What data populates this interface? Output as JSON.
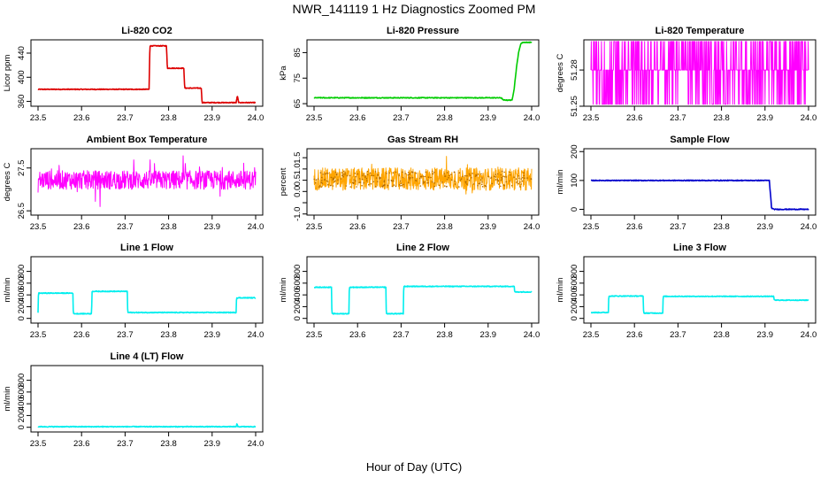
{
  "figure": {
    "title": "NWR_141119  1 Hz Diagnostics Zoomed PM",
    "xlabel": "Hour of Day (UTC)"
  },
  "chart_data": [
    {
      "type": "line",
      "title": "Li-820 CO2",
      "ylabel": "Licor ppm",
      "color": "#dd0000",
      "xlim": [
        23.5,
        24.0
      ],
      "ylim": [
        352,
        462
      ],
      "xticks": [
        23.5,
        23.6,
        23.7,
        23.8,
        23.9,
        24.0
      ],
      "yticks": [
        360,
        400,
        440
      ],
      "series": [
        {
          "x": [
            23.5,
            23.755,
            23.757,
            23.795,
            23.797,
            23.835,
            23.837,
            23.875,
            23.877,
            23.955,
            23.958,
            23.961,
            24.0
          ],
          "y": [
            380,
            380,
            452,
            452,
            415,
            415,
            382,
            382,
            358,
            358,
            369,
            358,
            358
          ]
        }
      ]
    },
    {
      "type": "line",
      "title": "Li-820 Pressure",
      "ylabel": "kPa",
      "color": "#00cc00",
      "xlim": [
        23.5,
        24.0
      ],
      "ylim": [
        64,
        90
      ],
      "xticks": [
        23.5,
        23.6,
        23.7,
        23.8,
        23.9,
        24.0
      ],
      "yticks": [
        65,
        75,
        85
      ],
      "series": [
        {
          "x": [
            23.5,
            23.93,
            23.935,
            23.955,
            23.96,
            23.965,
            23.97,
            23.975,
            23.98,
            24.0
          ],
          "y": [
            67.3,
            67.3,
            66.4,
            66.4,
            71,
            79,
            85,
            88.5,
            89,
            89
          ]
        }
      ]
    },
    {
      "type": "line",
      "title": "Li-820 Temperature",
      "ylabel": "degrees C",
      "color": "#ff00ff",
      "xlim": [
        23.5,
        24.0
      ],
      "ylim": [
        51.25,
        51.305
      ],
      "xticks": [
        23.5,
        23.6,
        23.7,
        23.8,
        23.9,
        24.0
      ],
      "yticks": [
        51.25,
        51.28
      ],
      "ytick_labels": [
        "51.25",
        "51.28"
      ],
      "series": [
        {
          "x": [
            23.5,
            24.0
          ],
          "y": [
            51.28,
            51.28
          ]
        }
      ],
      "noise": {
        "levels": [
          51.2516,
          51.3036
        ],
        "base": 51.28
      }
    },
    {
      "type": "line",
      "title": "Ambient Box Temperature",
      "ylabel": "degrees C",
      "color": "#ff00ff",
      "xlim": [
        23.5,
        24.0
      ],
      "ylim": [
        26.4,
        27.95
      ],
      "xticks": [
        23.5,
        23.6,
        23.7,
        23.8,
        23.9,
        24.0
      ],
      "yticks": [
        26.5,
        27.5
      ],
      "series": [
        {
          "x": [
            23.5,
            24.0
          ],
          "y": [
            27.22,
            27.22
          ]
        }
      ],
      "noise": {
        "amp": 0.22,
        "spike": 0.55
      }
    },
    {
      "type": "line",
      "title": "Gas Stream RH",
      "ylabel": "percent",
      "color": "#ffa500",
      "xlim": [
        23.5,
        24.0
      ],
      "ylim": [
        -1.05,
        1.9
      ],
      "xticks": [
        23.5,
        23.6,
        23.7,
        23.8,
        23.9,
        24.0
      ],
      "yticks": [
        -1.0,
        -0.5,
        0.0,
        0.5,
        1.0,
        1.5
      ],
      "ytick_labels": [
        "-1.0",
        "",
        "0.0",
        "0.5",
        "1.0",
        "1.5"
      ],
      "series": [
        {
          "x": [
            23.5,
            24.0
          ],
          "y": [
            0.55,
            0.55
          ]
        }
      ],
      "noise": {
        "amp": 0.5,
        "spike": 1.0
      }
    },
    {
      "type": "line",
      "title": "Sample Flow",
      "ylabel": "ml/min",
      "color": "#0000cc",
      "xlim": [
        23.5,
        24.0
      ],
      "ylim": [
        -20,
        210
      ],
      "xticks": [
        23.5,
        23.6,
        23.7,
        23.8,
        23.9,
        24.0
      ],
      "yticks": [
        0,
        100,
        200
      ],
      "series": [
        {
          "x": [
            23.5,
            23.91,
            23.915,
            23.92,
            24.0
          ],
          "y": [
            100,
            100,
            5,
            0,
            0
          ]
        }
      ]
    },
    {
      "type": "line",
      "title": "Line 1 Flow",
      "ylabel": "ml/min",
      "color": "#00eeee",
      "xlim": [
        23.5,
        24.0
      ],
      "ylim": [
        -80,
        1050
      ],
      "xticks": [
        23.5,
        23.6,
        23.7,
        23.8,
        23.9,
        24.0
      ],
      "yticks": [
        0,
        200,
        400,
        600,
        800
      ],
      "series": [
        {
          "x": [
            23.5,
            23.501,
            23.58,
            23.581,
            23.623,
            23.624,
            23.705,
            23.706,
            23.955,
            23.956,
            24.0
          ],
          "y": [
            100,
            430,
            430,
            80,
            80,
            460,
            460,
            100,
            100,
            350,
            350
          ]
        }
      ]
    },
    {
      "type": "line",
      "title": "Line 2 Flow",
      "ylabel": "ml/min",
      "color": "#00eeee",
      "xlim": [
        23.5,
        24.0
      ],
      "ylim": [
        -80,
        1050
      ],
      "xticks": [
        23.5,
        23.6,
        23.7,
        23.8,
        23.9,
        24.0
      ],
      "yticks": [
        0,
        200,
        400,
        600,
        800
      ],
      "series": [
        {
          "x": [
            23.5,
            23.54,
            23.541,
            23.58,
            23.581,
            23.665,
            23.666,
            23.705,
            23.706,
            23.96,
            23.961,
            24.0
          ],
          "y": [
            530,
            530,
            80,
            80,
            530,
            530,
            80,
            80,
            545,
            545,
            450,
            450
          ]
        }
      ]
    },
    {
      "type": "line",
      "title": "Line 3 Flow",
      "ylabel": "ml/min",
      "color": "#00eeee",
      "xlim": [
        23.5,
        24.0
      ],
      "ylim": [
        -80,
        1050
      ],
      "xticks": [
        23.5,
        23.6,
        23.7,
        23.8,
        23.9,
        24.0
      ],
      "yticks": [
        0,
        200,
        400,
        600,
        800
      ],
      "series": [
        {
          "x": [
            23.5,
            23.502,
            23.54,
            23.541,
            23.62,
            23.621,
            23.665,
            23.666,
            23.92,
            23.921,
            24.0
          ],
          "y": [
            100,
            100,
            100,
            380,
            380,
            90,
            90,
            375,
            375,
            310,
            310
          ]
        }
      ]
    },
    {
      "type": "line",
      "title": "Line 4 (LT) Flow",
      "ylabel": "ml/min",
      "color": "#00eeee",
      "xlim": [
        23.5,
        24.0
      ],
      "ylim": [
        -80,
        1050
      ],
      "xticks": [
        23.5,
        23.6,
        23.7,
        23.8,
        23.9,
        24.0
      ],
      "yticks": [
        0,
        200,
        400,
        600,
        800
      ],
      "series": [
        {
          "x": [
            23.5,
            23.955,
            23.957,
            23.959,
            24.0
          ],
          "y": [
            10,
            10,
            60,
            10,
            10
          ]
        }
      ]
    }
  ]
}
